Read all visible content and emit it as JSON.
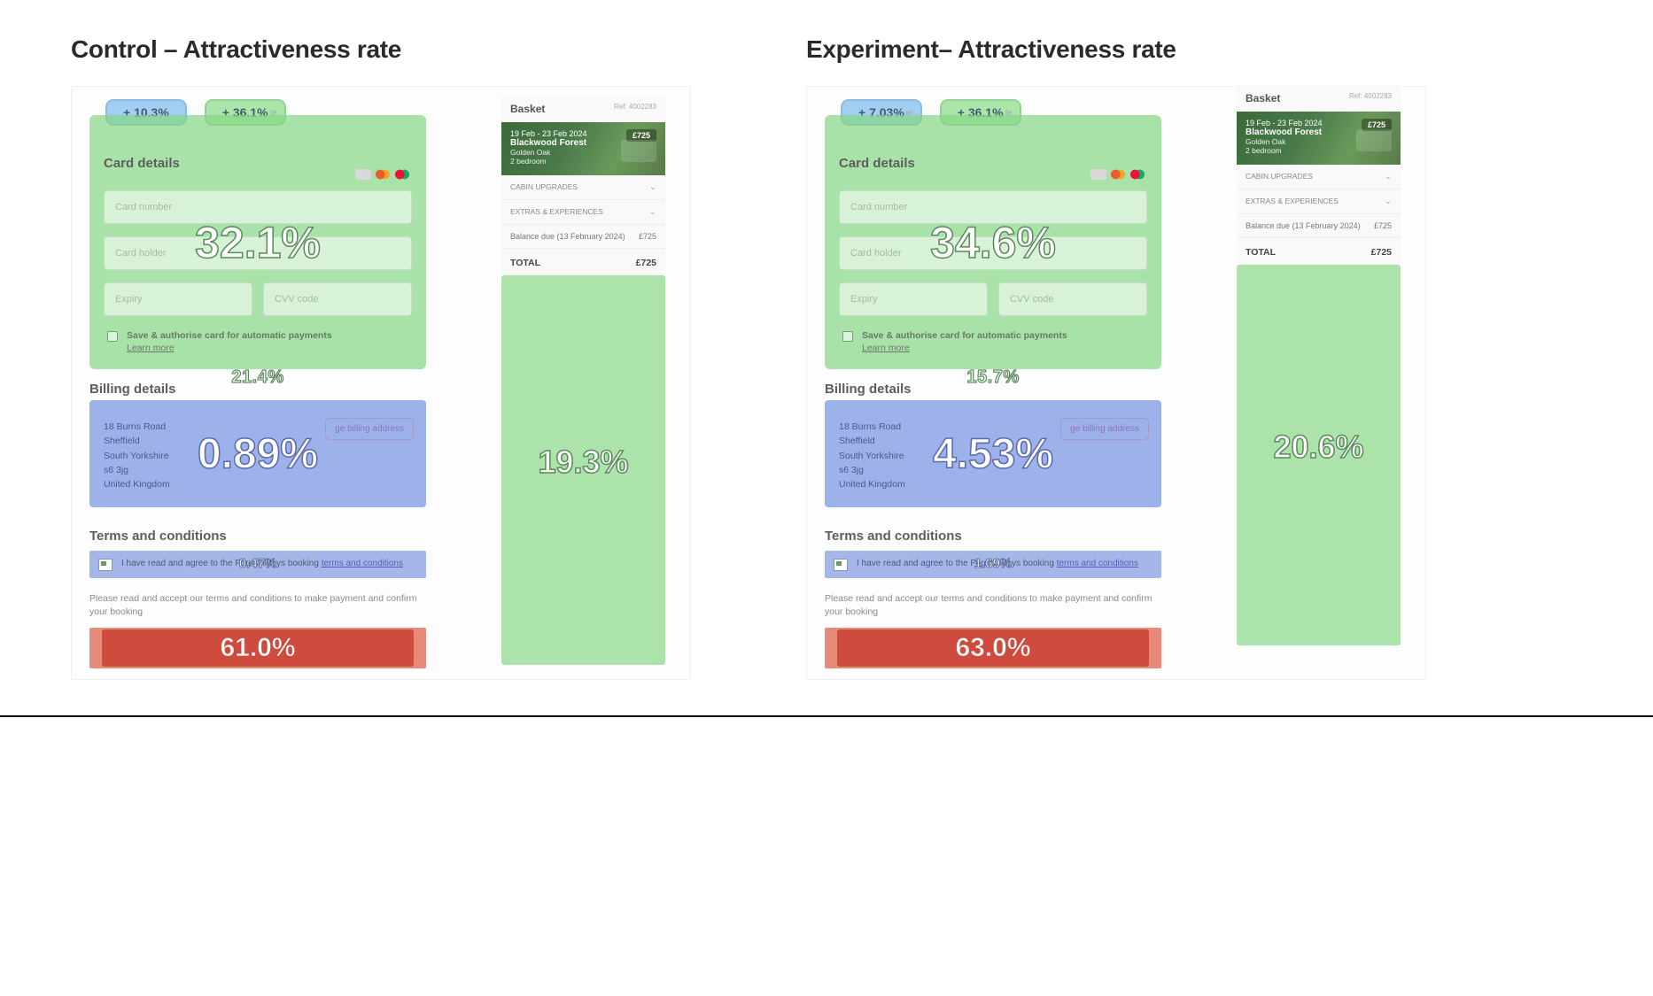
{
  "panels": {
    "control": {
      "title": "Control – Attractiveness rate",
      "badges": {
        "blue": "+ 10.3%",
        "green": "+ 36.1%"
      },
      "card": {
        "heading": "Card details",
        "fields": {
          "number": "Card number",
          "holder": "Card holder",
          "expiry": "Expiry",
          "cvv": "CVV code"
        },
        "save": "Save & authorise card for automatic payments",
        "learn": "Learn more",
        "pct": "32.1%"
      },
      "billing": {
        "heading": "Billing details",
        "title_pct": "21.4%",
        "pct": "0.89%",
        "address": [
          "18 Burns Road",
          "Sheffield",
          "South Yorkshire",
          "s6 3jg",
          "United Kingdom"
        ],
        "change": "ge billing address"
      },
      "terms": {
        "heading": "Terms and conditions",
        "text_prefix": "I have read and agree to the Forest lidays booking ",
        "link": "terms and conditions",
        "pct": "0.47%"
      },
      "note": "Please read and accept our terms and conditions to make payment and confirm your booking",
      "cta_pct": "61.0%",
      "basket": {
        "title": "Basket",
        "ref": "Ref: 4002283",
        "dates": "19 Feb - 23 Feb 2024",
        "location": "Blackwood Forest",
        "cabin": "Golden Oak",
        "beds": "2 bedroom",
        "price": "£725",
        "rows": {
          "upgrades": "CABIN UPGRADES",
          "extras": "EXTRAS & EXPERIENCES"
        },
        "balance_label": "Balance due (13 February 2024)",
        "balance_val": "£725",
        "total_label": "TOTAL",
        "total_val": "£725",
        "pct": "19.3%"
      }
    },
    "experiment": {
      "title": "Experiment– Attractiveness rate",
      "badges": {
        "blue": "+ 7.03%",
        "green": "+ 36.1%"
      },
      "card": {
        "heading": "Card details",
        "fields": {
          "number": "Card number",
          "holder": "Card holder",
          "expiry": "Expiry",
          "cvv": "CVV code"
        },
        "save": "Save & authorise card for automatic payments",
        "learn": "Learn more",
        "pct": "34.6%"
      },
      "billing": {
        "heading": "Billing details",
        "title_pct": "15.7%",
        "pct": "4.53%",
        "address": [
          "18 Burns Road",
          "Sheffield",
          "South Yorkshire",
          "s6 3jg",
          "United Kingdom"
        ],
        "change": "ge billing address"
      },
      "terms": {
        "heading": "Terms and conditions",
        "text_prefix": "I have read and agree to the Forest lidays booking ",
        "link": "terms and conditions",
        "pct": "1.69%"
      },
      "note": "Please read and accept our terms and conditions to make payment and confirm your booking",
      "cta_pct": "63.0%",
      "basket": {
        "title": "Basket",
        "ref": "Ref: 4002283",
        "dates": "19 Feb - 23 Feb 2024",
        "location": "Blackwood Forest",
        "cabin": "Golden Oak",
        "beds": "2 bedroom",
        "price": "£725",
        "rows": {
          "upgrades": "CABIN UPGRADES",
          "extras": "EXTRAS & EXPERIENCES"
        },
        "balance_label": "Balance due (13 February 2024)",
        "balance_val": "£725",
        "total_label": "TOTAL",
        "total_val": "£725",
        "pct": "20.6%"
      }
    }
  },
  "colors": {
    "green_overlay": "rgba(135,215,135,0.72)",
    "blue_overlay": "rgba(110,140,225,0.68)",
    "red_cta": "#cd483a",
    "red_cta_outer": "#e88a7a"
  }
}
